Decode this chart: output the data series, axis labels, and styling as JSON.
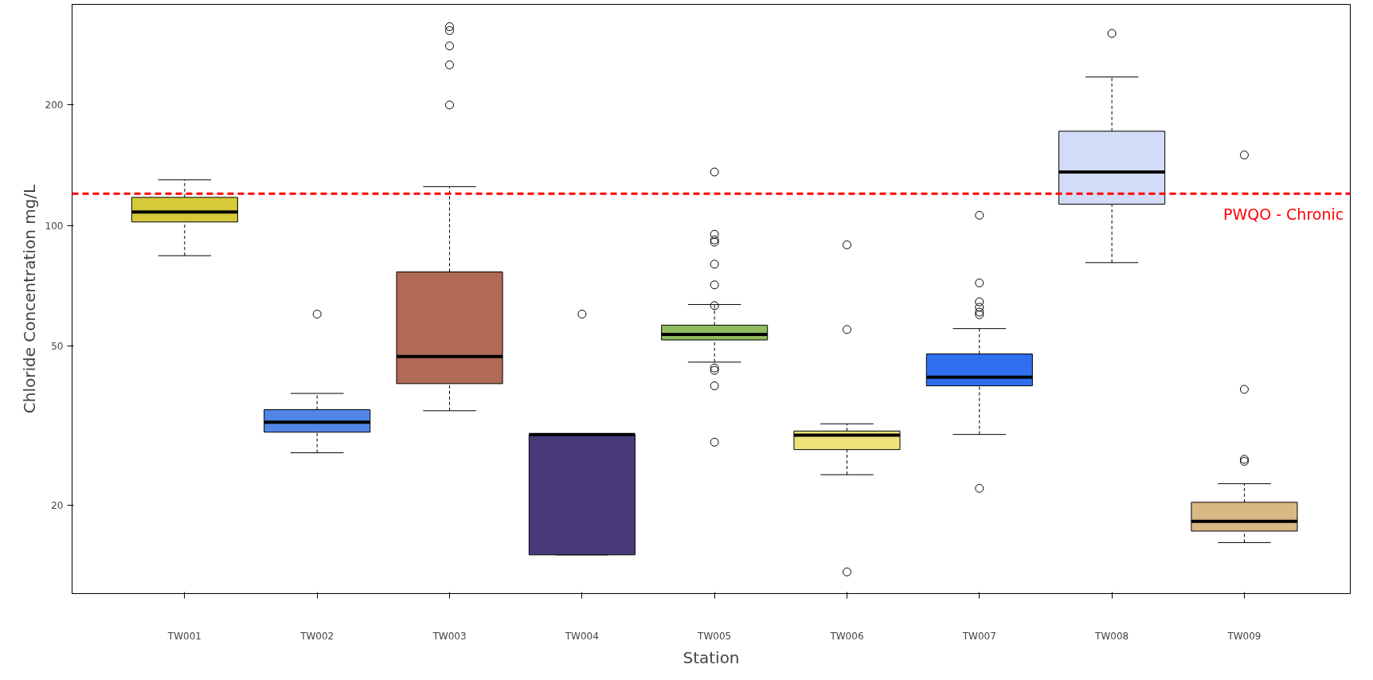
{
  "chart_data": {
    "type": "box",
    "xlabel": "Station",
    "ylabel": "Chloride Concentration mg/L",
    "categories": [
      "TW001",
      "TW002",
      "TW003",
      "TW004",
      "TW005",
      "TW006",
      "TW007",
      "TW008",
      "TW009"
    ],
    "colors": [
      "#d6c93a",
      "#4f86e8",
      "#b06a55",
      "#483a78",
      "#8fbc5e",
      "#eee27a",
      "#2f6ff0",
      "#d3dcf7",
      "#dab883"
    ],
    "boxes": [
      {
        "low": 84,
        "q1": 102,
        "median": 108,
        "q3": 117.5,
        "high": 130
      },
      {
        "low": 27,
        "q1": 30.4,
        "median": 32.2,
        "q3": 34.6,
        "high": 38,
        "outliers": [
          60
        ]
      },
      {
        "low": 34.4,
        "q1": 40.2,
        "median": 47,
        "q3": 76.5,
        "high": 125,
        "outliers": [
          200,
          252,
          281,
          307,
          314
        ]
      },
      {
        "low": 15,
        "q1": 15,
        "median": 30,
        "q3": 30,
        "high": 30,
        "outliers": [
          60
        ]
      },
      {
        "low": 45.5,
        "q1": 51.7,
        "median": 53.4,
        "q3": 56.3,
        "high": 63.4,
        "outliers": [
          136,
          95,
          92,
          90.8,
          80,
          71,
          63,
          44,
          43.4,
          39.7,
          28.7
        ]
      },
      {
        "low": 23.8,
        "q1": 27.5,
        "median": 29.9,
        "q3": 30.6,
        "high": 31.9,
        "outliers": [
          89.4,
          54.9,
          13.6
        ]
      },
      {
        "low": 30,
        "q1": 39.7,
        "median": 41.7,
        "q3": 47.7,
        "high": 55.2,
        "outliers": [
          106,
          71.8,
          64.4,
          62.4,
          60.7,
          59.8,
          22
        ]
      },
      {
        "low": 80.7,
        "q1": 113,
        "median": 136,
        "q3": 172,
        "high": 235,
        "outliers": [
          302
        ]
      },
      {
        "low": 16.1,
        "q1": 17.2,
        "median": 18.2,
        "q3": 20.3,
        "high": 22.6,
        "outliers": [
          150,
          38.9,
          26,
          25.7
        ]
      }
    ],
    "log": true,
    "ylim": [
      12,
      357
    ],
    "yticks": [
      20,
      50,
      100,
      200
    ],
    "grid": false,
    "marker": "circle",
    "ref_lines": [
      {
        "axis": "y",
        "value": 120,
        "label": "PWQO - Chronic",
        "color": "#ff0000",
        "line_style": "dashed"
      }
    ]
  }
}
